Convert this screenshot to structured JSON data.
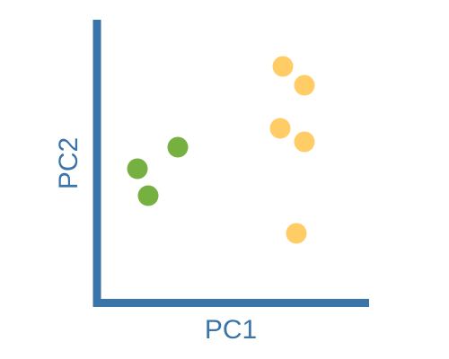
{
  "chart_data": {
    "type": "scatter",
    "title": "",
    "xlabel": "PC1",
    "ylabel": "PC2",
    "xlim": [
      0,
      10
    ],
    "ylim": [
      0,
      10
    ],
    "grid": false,
    "ticks": false,
    "legend": "none",
    "axis_color": "#3a74a8",
    "series": [
      {
        "color": "#76b041",
        "points": [
          {
            "x": 1.5,
            "y": 5.0
          },
          {
            "x": 1.9,
            "y": 4.0
          },
          {
            "x": 3.0,
            "y": 5.8
          }
        ]
      },
      {
        "color": "#ffcc66",
        "points": [
          {
            "x": 6.9,
            "y": 8.8
          },
          {
            "x": 7.7,
            "y": 8.1
          },
          {
            "x": 6.8,
            "y": 6.5
          },
          {
            "x": 7.7,
            "y": 6.0
          },
          {
            "x": 7.4,
            "y": 2.6
          }
        ]
      }
    ]
  }
}
